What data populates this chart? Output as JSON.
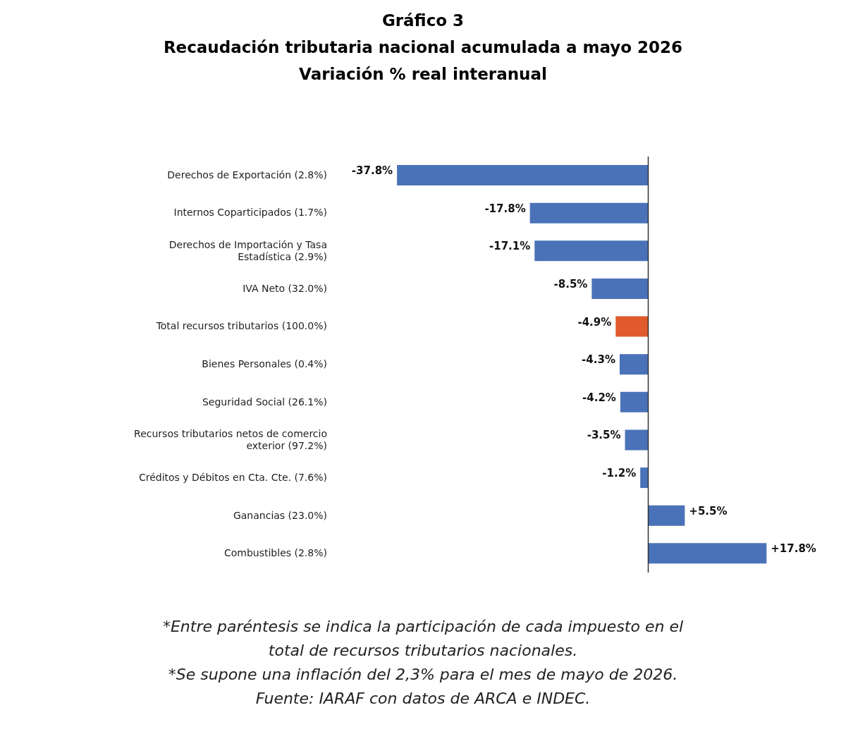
{
  "chart_data": {
    "type": "bar",
    "orientation": "horizontal",
    "title": "Gráfico 3",
    "subtitle": "Recaudación tributaria nacional acumulada a mayo 2026\nVariación % real interanual",
    "categories": [
      "Derechos de Exportación (2.8%)",
      "Internos Coparticipados (1.7%)",
      "Derechos de Importación y Tasa Estadística (2.9%)",
      "IVA Neto (32.0%)",
      "Total recursos tributarios (100.0%)",
      "Bienes Personales (0.4%)",
      "Seguridad Social (26.1%)",
      "Recursos tributarios netos de comercio exterior (97.2%)",
      "Créditos y Débitos en Cta. Cte. (7.6%)",
      "Ganancias (23.0%)",
      "Combustibles (2.8%)"
    ],
    "values": [
      -37.8,
      -17.8,
      -17.1,
      -8.5,
      -4.9,
      -4.3,
      -4.2,
      -3.5,
      -1.2,
      5.5,
      17.8
    ],
    "value_labels": [
      "-37.8%",
      "-17.8%",
      "-17.1%",
      "-8.5%",
      "-4.9%",
      "-4.3%",
      "-4.2%",
      "-3.5%",
      "-1.2%",
      "+5.5%",
      "+17.8%"
    ],
    "colors": [
      "#4a72b8",
      "#4a72b8",
      "#4a72b8",
      "#4a72b8",
      "#e05a2b",
      "#4a72b8",
      "#4a72b8",
      "#4a72b8",
      "#4a72b8",
      "#4a72b8",
      "#4a72b8"
    ],
    "ref_lines": [
      {
        "axis": "x",
        "value": 0,
        "color": "#333333"
      }
    ],
    "grid": false,
    "legend": false,
    "annotations": [
      "*Entre paréntesis se indica la participación de cada impuesto en el total de recursos tributarios nacionales.",
      "*Se supone una inflación del 2,3% para el mes de mayo de 2026.",
      "Fuente: IARAF con datos de ARCA e INDEC."
    ]
  }
}
